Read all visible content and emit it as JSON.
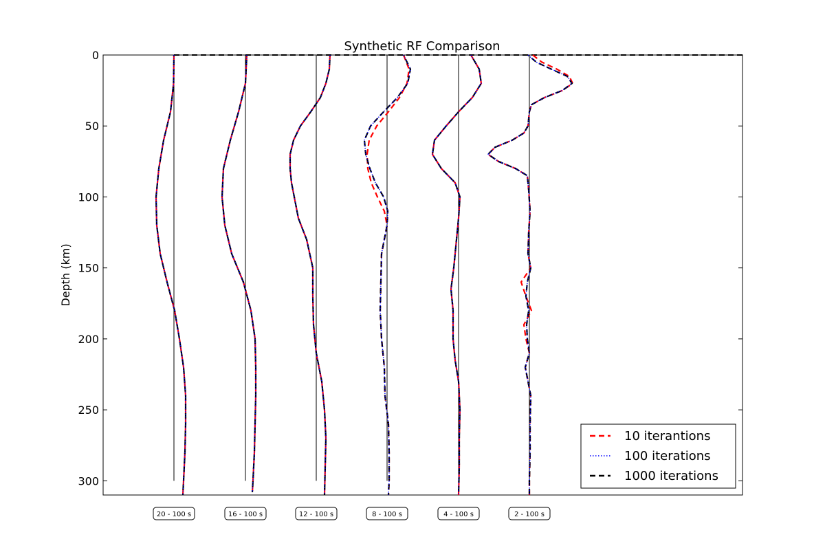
{
  "chart_data": {
    "type": "line",
    "title": "Synthetic RF Comparison",
    "xlabel": "",
    "ylabel": "Depth (km)",
    "ylim": [
      310,
      0
    ],
    "yticks": [
      0,
      50,
      100,
      150,
      200,
      250,
      300
    ],
    "grid": false,
    "legend_position": "lower-right",
    "traces": [
      {
        "label": "20 - 100 s",
        "baseline": 0,
        "amp_scale": 1,
        "depth": [
          0,
          20,
          40,
          60,
          80,
          100,
          120,
          140,
          160,
          180,
          200,
          220,
          240,
          260,
          280,
          300,
          310
        ],
        "iter10": [
          0,
          -0.5,
          -5,
          -15,
          -22,
          -26,
          -25,
          -20,
          -10,
          1,
          8,
          14,
          17,
          17,
          16,
          14,
          13
        ]
      },
      {
        "label": "16 - 100 s",
        "baseline": 0,
        "amp_scale": 1,
        "depth": [
          0,
          20,
          40,
          60,
          80,
          100,
          120,
          140,
          160,
          180,
          200,
          220,
          240,
          260,
          280,
          300,
          308
        ],
        "iter10": [
          2,
          0,
          -10,
          -22,
          -32,
          -34,
          -30,
          -20,
          -3,
          8,
          14,
          15,
          15,
          14,
          13,
          11,
          10
        ]
      },
      {
        "label": "12 - 100 s",
        "baseline": 0,
        "amp_scale": 1,
        "depth": [
          0,
          10,
          20,
          30,
          40,
          50,
          60,
          70,
          80,
          90,
          100,
          115,
          130,
          150,
          170,
          190,
          210,
          230,
          250,
          270,
          290,
          310
        ],
        "iter10": [
          20,
          19,
          14,
          6,
          -8,
          -23,
          -33,
          -38,
          -38,
          -36,
          -32,
          -26,
          -14,
          -5,
          -5,
          -4,
          0,
          8,
          12,
          14,
          13,
          12
        ]
      },
      {
        "label": "8 - 100 s",
        "baseline": 0,
        "amp_scale": 1,
        "depth": [
          0,
          10,
          20,
          30,
          40,
          50,
          60,
          70,
          80,
          90,
          100,
          110,
          120,
          140,
          160,
          180,
          200,
          220,
          240,
          260,
          280,
          300,
          310
        ],
        "iter10": [
          24,
          32,
          29,
          18,
          2,
          -15,
          -26,
          -29,
          -28,
          -23,
          -14,
          -4,
          0,
          -8,
          -9,
          -10,
          -8,
          -4,
          -3,
          2,
          3,
          3,
          2
        ],
        "iter100": [
          24,
          34,
          30,
          15,
          -5,
          -24,
          -33,
          -31,
          -25,
          -17,
          -5,
          1,
          0,
          -8,
          -9,
          -10,
          -8,
          -4,
          -3,
          2,
          3,
          3,
          2
        ]
      },
      {
        "label": "4 - 100 s",
        "baseline": 0,
        "amp_scale": 1,
        "depth": [
          0,
          10,
          20,
          30,
          40,
          50,
          60,
          70,
          80,
          90,
          100,
          115,
          130,
          150,
          165,
          180,
          200,
          215,
          230,
          250,
          270,
          290,
          310
        ],
        "iter10": [
          18,
          30,
          33,
          20,
          0,
          -18,
          -35,
          -38,
          -25,
          -5,
          2,
          0,
          -3,
          -7,
          -11,
          -8,
          -8,
          -5,
          0,
          2,
          1,
          1,
          0
        ]
      },
      {
        "label": "2 - 100 s",
        "baseline": 0,
        "amp_scale": 1,
        "depth": [
          0,
          5,
          10,
          15,
          20,
          25,
          30,
          35,
          40,
          45,
          50,
          55,
          60,
          65,
          70,
          75,
          80,
          85,
          95,
          110,
          125,
          140,
          150,
          160,
          170,
          180,
          190,
          200,
          210,
          220,
          230,
          240,
          260,
          280,
          300,
          310
        ],
        "iter10": [
          5,
          18,
          40,
          58,
          63,
          48,
          22,
          3,
          0,
          -1,
          -2,
          -8,
          -25,
          -50,
          -60,
          -45,
          -20,
          -3,
          -1,
          1,
          -1,
          -2,
          2,
          -12,
          -5,
          3,
          -8,
          -5,
          0,
          -6,
          -2,
          2,
          1,
          1,
          0,
          0
        ],
        "iter100": [
          -2,
          10,
          32,
          55,
          62,
          48,
          22,
          3,
          0,
          -1,
          -2,
          -8,
          -25,
          -50,
          -60,
          -45,
          -20,
          -3,
          -1,
          1,
          -1,
          -2,
          2,
          -3,
          -5,
          -1,
          -4,
          -3,
          0,
          -6,
          -2,
          2,
          1,
          1,
          0,
          0
        ]
      }
    ],
    "series": [
      {
        "name": "10 iterantions",
        "color": "#ff0000",
        "style": "dashed"
      },
      {
        "name": "100 iterations",
        "color": "#0000ff",
        "style": "dotted"
      },
      {
        "name": "1000 iterations",
        "color": "#000000",
        "style": "dashed"
      }
    ]
  }
}
